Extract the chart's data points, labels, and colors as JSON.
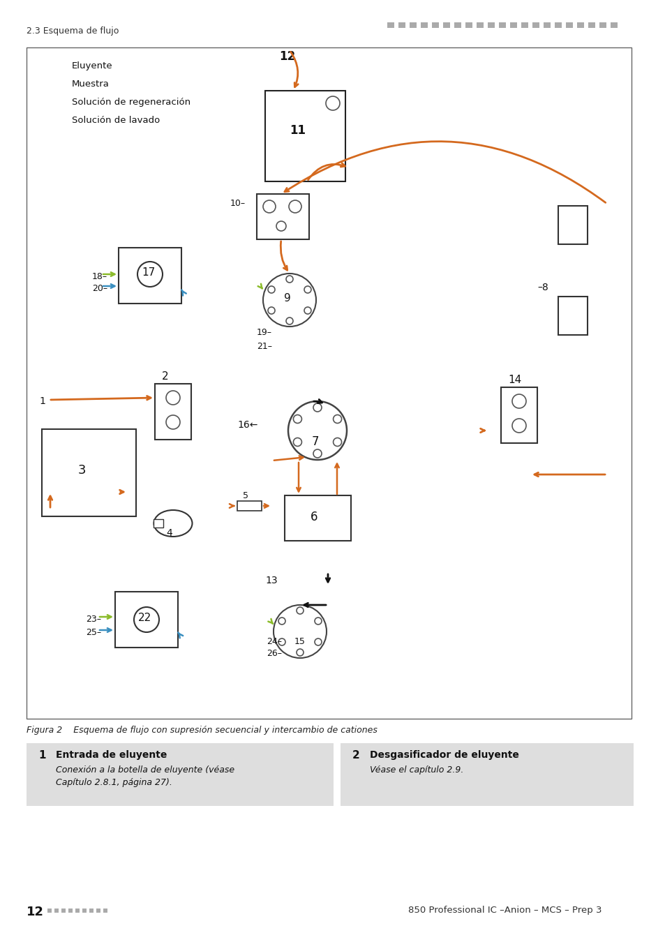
{
  "page_header_left": "2.3 Esquema de flujo",
  "page_footer_right": "850 Professional IC –Anion – MCS – Prep 3",
  "figure_caption": "Figura 2    Esquema de flujo con supresión secuencial y intercambio de cationes",
  "legend_items": [
    {
      "label": "Eluyente",
      "color": "#D4691E",
      "linestyle": "solid"
    },
    {
      "label": "Muestra",
      "color": "#111111",
      "linestyle": "solid"
    },
    {
      "label": "Solución de regeneración",
      "color": "#8BBB2A",
      "linestyle": "dashed"
    },
    {
      "label": "Solución de lavado",
      "color": "#3A8FC0",
      "linestyle": "dashed"
    }
  ],
  "box1_title": "1",
  "box1_desc1": "Entrada de eluyente",
  "box1_desc2": "Conexión a la botella de eluyente (véase",
  "box1_desc3": "Capítulo 2.8.1, página 27).",
  "box2_title": "2",
  "box2_desc1": "Desgasificador de eluyente",
  "box2_desc2": "Véase el capítulo 2.9.",
  "orange": "#D4691E",
  "black": "#111111",
  "green_dash": "#8BBB2A",
  "blue_dash": "#3A8FC0",
  "gray_bg": "#DEDEDE"
}
